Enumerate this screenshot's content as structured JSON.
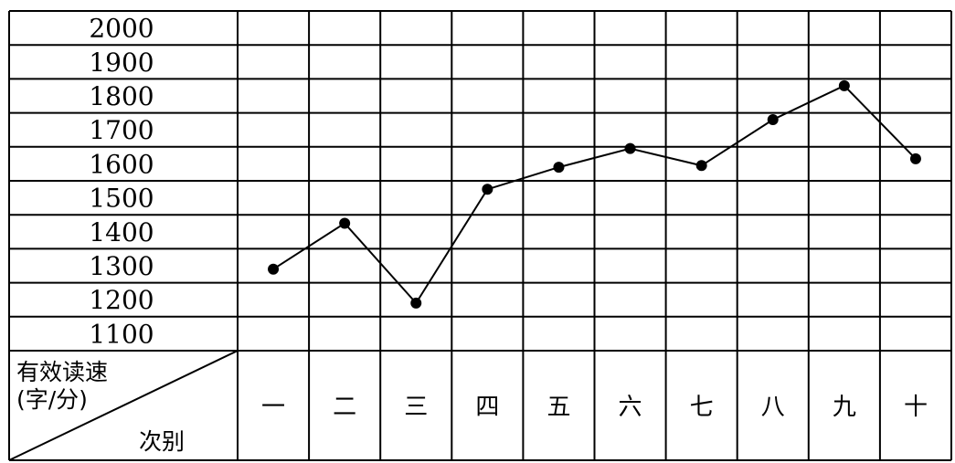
{
  "chart_data": {
    "type": "line",
    "title": "",
    "ylim": [
      1100,
      2000
    ],
    "y_ticks": [
      "2000",
      "1900",
      "1800",
      "1700",
      "1600",
      "1500",
      "1400",
      "1300",
      "1200",
      "1100"
    ],
    "categories": [
      "一",
      "二",
      "三",
      "四",
      "五",
      "六",
      "七",
      "八",
      "九",
      "十"
    ],
    "values": [
      1290,
      1425,
      1190,
      1525,
      1590,
      1645,
      1595,
      1730,
      1830,
      1615
    ],
    "corner_label": {
      "ylabel_line1": "有效读速",
      "ylabel_line2": "(字/分)",
      "xlabel": "次别"
    },
    "grid": true,
    "line_color": "#000000",
    "marker_color": "#000000"
  }
}
